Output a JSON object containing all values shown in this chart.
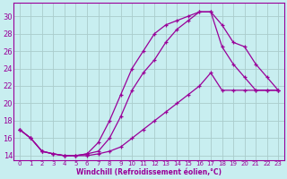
{
  "xlabel": "Windchill (Refroidissement éolien,°C)",
  "background_color": "#c8eef0",
  "grid_color": "#aacccc",
  "line_color": "#990099",
  "xlim": [
    -0.5,
    23.5
  ],
  "ylim": [
    13.5,
    31.5
  ],
  "xticks": [
    0,
    1,
    2,
    3,
    4,
    5,
    6,
    7,
    8,
    9,
    10,
    11,
    12,
    13,
    14,
    15,
    16,
    17,
    18,
    19,
    20,
    21,
    22,
    23
  ],
  "yticks": [
    14,
    16,
    18,
    20,
    22,
    24,
    26,
    28,
    30
  ],
  "curve1_x": [
    0,
    1,
    2,
    3,
    4,
    5,
    6,
    7,
    8,
    9,
    10,
    11,
    12,
    13,
    14,
    15,
    16,
    17,
    18,
    19,
    20,
    21,
    22,
    23
  ],
  "curve1_y": [
    17.0,
    16.0,
    14.5,
    14.2,
    14.0,
    14.0,
    14.2,
    14.5,
    16.0,
    18.5,
    21.5,
    23.5,
    25.0,
    27.0,
    28.5,
    29.5,
    30.5,
    30.5,
    29.0,
    27.0,
    26.5,
    24.5,
    23.0,
    21.5
  ],
  "curve2_x": [
    0,
    1,
    2,
    3,
    4,
    5,
    6,
    7,
    8,
    9,
    10,
    11,
    12,
    13,
    14,
    15,
    16,
    17,
    18,
    19,
    20,
    21,
    22,
    23
  ],
  "curve2_y": [
    17.0,
    16.0,
    14.5,
    14.2,
    14.0,
    14.0,
    14.2,
    15.5,
    18.0,
    21.0,
    24.0,
    26.0,
    28.0,
    29.0,
    29.5,
    30.0,
    30.5,
    30.5,
    26.5,
    24.5,
    23.0,
    21.5,
    21.5,
    21.5
  ],
  "curve3_x": [
    0,
    1,
    2,
    3,
    4,
    5,
    6,
    7,
    8,
    9,
    10,
    11,
    12,
    13,
    14,
    15,
    16,
    17,
    18,
    19,
    20,
    21,
    22,
    23
  ],
  "curve3_y": [
    17.0,
    16.0,
    14.5,
    14.2,
    14.0,
    14.0,
    14.0,
    14.2,
    14.5,
    15.0,
    16.0,
    17.0,
    18.0,
    19.0,
    20.0,
    21.0,
    22.0,
    23.5,
    21.5,
    21.5,
    21.5,
    21.5,
    21.5,
    21.5
  ]
}
